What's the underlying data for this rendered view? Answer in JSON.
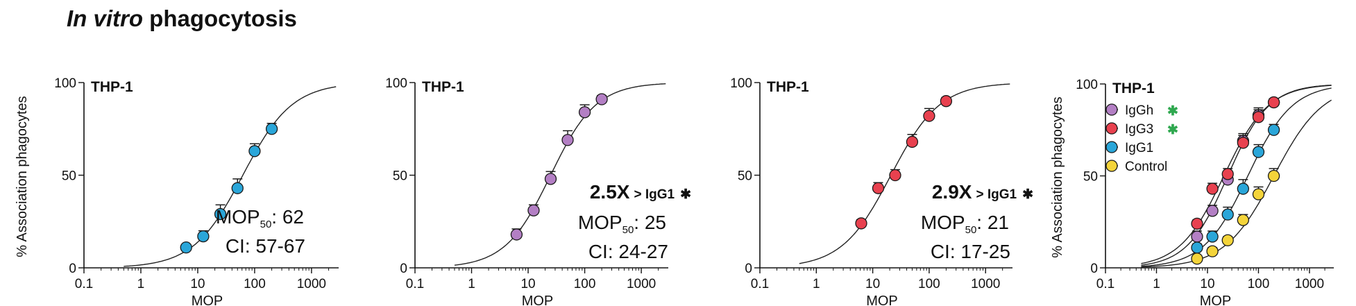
{
  "page_title": {
    "italic": "In vitro",
    "rest": " phagocytosis"
  },
  "colors": {
    "IgGh": "#b37fc4",
    "IgG3": "#e8414f",
    "IgG1": "#2aa6d9",
    "Control": "#f4d43a",
    "asterisk_green": "#2fa84f",
    "axis": "#111111",
    "curve": "#222222"
  },
  "chart_data": [
    {
      "type": "scatter",
      "panel": "THP-1",
      "xscale": "log",
      "xlim": [
        0.1,
        3000
      ],
      "ylim": [
        0,
        100
      ],
      "xticks": [
        "0.1",
        "1",
        "10",
        "100",
        "1000"
      ],
      "yticks": [
        "0",
        "50",
        "100"
      ],
      "xlabel": "MOP",
      "ylabel": "% Association phagocytes",
      "series": [
        {
          "name": "IgG1",
          "color": "#2aa6d9",
          "x": [
            6.25,
            12.5,
            25,
            50,
            100,
            200
          ],
          "y": [
            11,
            17,
            29,
            43,
            63,
            75
          ],
          "err": [
            1,
            3,
            5,
            5,
            4,
            3
          ],
          "fit": {
            "ec50": 62,
            "hill": 1.0
          }
        }
      ],
      "annotations": {
        "mop_prefix": "MOP",
        "mop_sub": "50",
        "mop_value": ": 62",
        "ci": "CI: 57-67"
      }
    },
    {
      "type": "scatter",
      "panel": "THP-1",
      "xscale": "log",
      "xlim": [
        0.1,
        3000
      ],
      "ylim": [
        0,
        100
      ],
      "xticks": [
        "0.1",
        "1",
        "10",
        "100",
        "1000"
      ],
      "yticks": [
        "0",
        "50",
        "100"
      ],
      "xlabel": "MOP",
      "series": [
        {
          "name": "IgGh",
          "color": "#b37fc4",
          "x": [
            6.25,
            12.5,
            25,
            50,
            100,
            200
          ],
          "y": [
            18,
            31,
            48,
            69,
            84,
            91
          ],
          "err": [
            3,
            3,
            4,
            5,
            4,
            2
          ],
          "fit": {
            "ec50": 25,
            "hill": 1.08
          }
        }
      ],
      "annotations": {
        "fold": "2.5X",
        "comparison": "> IgG1",
        "star": "✱",
        "mop_prefix": "MOP",
        "mop_sub": "50",
        "mop_value": ": 25",
        "ci": "CI: 24-27"
      }
    },
    {
      "type": "scatter",
      "panel": "THP-1",
      "xscale": "log",
      "xlim": [
        0.1,
        3000
      ],
      "ylim": [
        0,
        100
      ],
      "xticks": [
        "0.1",
        "1",
        "10",
        "100",
        "1000"
      ],
      "yticks": [
        "0",
        "50",
        "100"
      ],
      "xlabel": "MOP",
      "series": [
        {
          "name": "IgG3",
          "color": "#e8414f",
          "x": [
            6.25,
            12.5,
            25,
            50,
            100,
            200
          ],
          "y": [
            24,
            43,
            50,
            68,
            82,
            90
          ],
          "err": [
            2,
            3,
            3,
            4,
            4,
            2
          ],
          "fit": {
            "ec50": 21,
            "hill": 1.0
          }
        }
      ],
      "annotations": {
        "fold": "2.9X",
        "comparison": "> IgG1",
        "star": "✱",
        "mop_prefix": "MOP",
        "mop_sub": "50",
        "mop_value": ": 21",
        "ci": "CI: 17-25"
      }
    },
    {
      "type": "scatter",
      "panel": "THP-1",
      "xscale": "log",
      "xlim": [
        0.1,
        3000
      ],
      "ylim": [
        0,
        100
      ],
      "xticks": [
        "0.1",
        "1",
        "10",
        "100",
        "1000"
      ],
      "yticks": [
        "0",
        "50",
        "100"
      ],
      "xlabel": "MOP",
      "ylabel": "% Association phagocytes",
      "legend": {
        "placement": "top-left",
        "entries": [
          "IgGh",
          "IgG3",
          "IgG1",
          "Control"
        ],
        "starred": [
          "IgGh",
          "IgG3"
        ],
        "star": "✱"
      },
      "series": [
        {
          "name": "IgGh",
          "color": "#b37fc4",
          "x": [
            6.25,
            12.5,
            25,
            50,
            100,
            200
          ],
          "y": [
            17,
            31,
            48,
            69,
            83,
            90
          ],
          "err": [
            3,
            3,
            4,
            4,
            4,
            2
          ],
          "fit": {
            "ec50": 25,
            "hill": 1.08
          }
        },
        {
          "name": "IgG3",
          "color": "#e8414f",
          "x": [
            6.25,
            12.5,
            25,
            50,
            100,
            200
          ],
          "y": [
            24,
            43,
            51,
            68,
            82,
            90
          ],
          "err": [
            2,
            3,
            3,
            4,
            4,
            2
          ],
          "fit": {
            "ec50": 21,
            "hill": 1.0
          }
        },
        {
          "name": "IgG1",
          "color": "#2aa6d9",
          "x": [
            6.25,
            12.5,
            25,
            50,
            100,
            200
          ],
          "y": [
            11,
            17,
            29,
            43,
            63,
            75
          ],
          "err": [
            2,
            3,
            4,
            5,
            4,
            3
          ],
          "fit": {
            "ec50": 62,
            "hill": 1.0
          }
        },
        {
          "name": "Control",
          "color": "#f4d43a",
          "x": [
            6.25,
            12.5,
            25,
            50,
            100,
            200
          ],
          "y": [
            5,
            9,
            15,
            26,
            40,
            50
          ],
          "err": [
            1,
            2,
            2,
            3,
            4,
            4
          ],
          "fit": {
            "ec50": 200,
            "hill": 0.9
          }
        }
      ]
    }
  ]
}
